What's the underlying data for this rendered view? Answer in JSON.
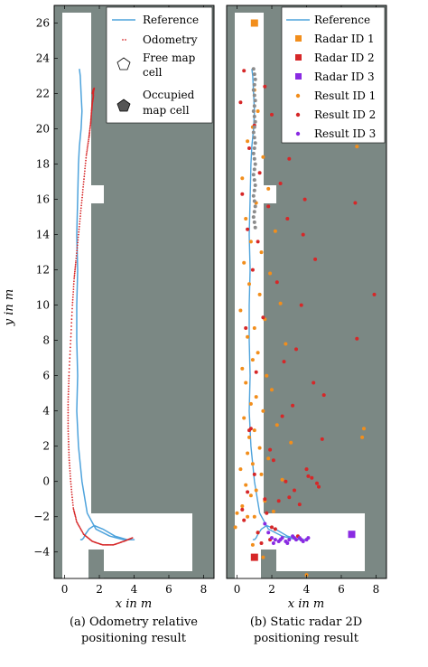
{
  "chart_data": [
    {
      "type": "scatter",
      "caption": [
        "(a) Odometry relative",
        "positioning result"
      ],
      "xlabel": "x in m",
      "ylabel": "y in m",
      "xlim": [
        -0.6,
        8.6
      ],
      "ylim": [
        -5.5,
        27
      ],
      "xticks": [
        0,
        2,
        4,
        6,
        8
      ],
      "yticks": [
        -4,
        -2,
        0,
        2,
        4,
        6,
        8,
        10,
        12,
        14,
        16,
        18,
        20,
        22,
        24,
        26
      ],
      "legend_position": "top-right",
      "legend": [
        {
          "label": "Reference",
          "kind": "line",
          "color": "#4ea3dc"
        },
        {
          "label": "Odometry",
          "kind": "dots",
          "color": "#d62728"
        },
        {
          "label": "Free map",
          "label2": "cell",
          "kind": "pentagon-open"
        },
        {
          "label": "Occupied",
          "label2": "map cell",
          "kind": "pentagon-filled"
        }
      ],
      "series": [
        {
          "name": "Reference",
          "kind": "line",
          "color": "#4ea3dc",
          "x": [
            0.9,
            1.0,
            1.1,
            1.2,
            1.4,
            1.7,
            2.2,
            2.9,
            3.6,
            4.0,
            3.4,
            2.6,
            1.8,
            1.3,
            1.0,
            0.8,
            0.7,
            0.75,
            0.7,
            0.7,
            0.75,
            0.7,
            0.75,
            0.8,
            0.85,
            0.95,
            1.0,
            0.95,
            0.9,
            0.85
          ],
          "y": [
            -3.3,
            -3.3,
            -3.2,
            -3.0,
            -2.7,
            -2.5,
            -2.7,
            -3.1,
            -3.3,
            -3.3,
            -3.3,
            -3.1,
            -2.7,
            -1.8,
            0.0,
            2.0,
            4.0,
            6.0,
            8.0,
            10.0,
            12.0,
            14.0,
            16.0,
            18.0,
            19.0,
            20.0,
            21.0,
            22.0,
            23.0,
            23.4
          ]
        },
        {
          "name": "Odometry",
          "kind": "dots",
          "color": "#d62728",
          "x": [
            3.9,
            3.4,
            2.8,
            2.2,
            1.6,
            1.1,
            0.7,
            0.5,
            0.35,
            0.25,
            0.2,
            0.2,
            0.25,
            0.35,
            0.45,
            0.55,
            0.65,
            0.8,
            0.95,
            1.1,
            1.25,
            1.4,
            1.5,
            1.55,
            1.6,
            1.65,
            1.65,
            1.7,
            1.65,
            1.6
          ],
          "y": [
            -3.2,
            -3.4,
            -3.6,
            -3.6,
            -3.4,
            -3.0,
            -2.3,
            -1.5,
            0.0,
            1.5,
            3.0,
            4.5,
            6.0,
            8.0,
            10.0,
            11.5,
            12.5,
            14.0,
            15.5,
            17.0,
            18.5,
            19.5,
            20.3,
            21.0,
            21.5,
            21.8,
            22.1,
            22.3,
            22.2,
            22.0
          ]
        }
      ]
    },
    {
      "type": "scatter",
      "caption": [
        "(b) Static radar 2D",
        "positioning result"
      ],
      "xlabel": "x in m",
      "xlim": [
        -0.6,
        8.6
      ],
      "ylim": [
        -5.5,
        27
      ],
      "xticks": [
        0,
        2,
        4,
        6,
        8
      ],
      "legend_position": "top-right",
      "legend": [
        {
          "label": "Reference",
          "kind": "line",
          "color": "#4ea3dc"
        },
        {
          "label": "Radar ID 1",
          "kind": "square",
          "color": "#f28e1c"
        },
        {
          "label": "Radar ID 2",
          "kind": "square",
          "color": "#d62728"
        },
        {
          "label": "Radar ID 3",
          "kind": "square",
          "color": "#8a2be2"
        },
        {
          "label": "Result ID 1",
          "kind": "dot",
          "color": "#f28e1c"
        },
        {
          "label": "Result ID 2",
          "kind": "dot",
          "color": "#d62728"
        },
        {
          "label": "Result ID 3",
          "kind": "dot",
          "color": "#8a2be2"
        }
      ],
      "radars": [
        {
          "name": "Radar ID 1",
          "x": 1.0,
          "y": 26.0,
          "color": "#f28e1c"
        },
        {
          "name": "Radar ID 2",
          "x": 1.0,
          "y": -4.3,
          "color": "#d62728"
        },
        {
          "name": "Radar ID 3",
          "x": 6.6,
          "y": -3.0,
          "color": "#8a2be2"
        }
      ],
      "results": [
        {
          "name": "Result ID 1",
          "color": "#f28e1c",
          "x": [
            1.0,
            1.2,
            0.9,
            0.6,
            1.5,
            0.3,
            1.8,
            1.1,
            0.5,
            2.2,
            0.8,
            1.4,
            0.4,
            1.9,
            0.7,
            1.3,
            2.5,
            0.2,
            1.6,
            1.0,
            0.6,
            2.8,
            1.2,
            0.9,
            0.3,
            1.7,
            0.5,
            2.0,
            1.1,
            0.8,
            1.5,
            0.4,
            2.3,
            1.0,
            0.7,
            3.1,
            1.3,
            0.6,
            1.8,
            0.9,
            0.2,
            1.4,
            2.6,
            0.5,
            1.1,
            0.8,
            1.6,
            0.3,
            2.1,
            1.0,
            7.2,
            7.3,
            6.9,
            4.0,
            0.0,
            -0.1,
            1.2,
            0.9,
            1.5,
            0.6
          ],
          "y": [
            22.2,
            21.0,
            20.1,
            19.3,
            18.4,
            17.2,
            16.6,
            15.8,
            14.9,
            14.2,
            13.6,
            13.0,
            12.4,
            11.8,
            11.2,
            10.6,
            10.1,
            9.7,
            9.2,
            8.7,
            8.2,
            7.8,
            7.3,
            6.9,
            6.4,
            6.0,
            5.6,
            5.2,
            4.8,
            4.4,
            4.0,
            3.6,
            3.2,
            2.9,
            2.5,
            2.2,
            1.9,
            1.6,
            1.3,
            1.0,
            0.7,
            0.4,
            0.1,
            -0.2,
            -0.5,
            -0.8,
            -1.1,
            -1.4,
            -1.7,
            -2.0,
            2.5,
            3.0,
            19.0,
            -5.3,
            -1.8,
            -2.6,
            -2.9,
            -3.6,
            -4.3,
            -2.0
          ]
        },
        {
          "name": "Result ID 2",
          "color": "#d62728",
          "x": [
            0.4,
            1.6,
            0.2,
            2.0,
            1.0,
            2.8,
            0.7,
            3.0,
            1.3,
            2.5,
            0.3,
            3.9,
            1.8,
            2.9,
            0.6,
            3.8,
            1.2,
            6.8,
            4.5,
            0.9,
            2.3,
            7.9,
            3.7,
            1.5,
            0.5,
            6.9,
            3.4,
            2.7,
            1.1,
            4.4,
            5.0,
            3.2,
            2.6,
            0.8,
            4.9,
            1.9,
            2.1,
            4.0,
            4.3,
            4.7,
            3.0,
            3.6,
            1.7,
            0.4,
            2.2,
            3.5,
            1.4,
            1.0,
            0.6,
            2.8,
            4.6,
            1.6,
            2.0,
            1.2,
            0.3,
            1.9,
            4.1,
            3.3,
            2.4,
            0.7
          ],
          "y": [
            23.3,
            22.4,
            21.5,
            20.8,
            20.2,
            19.6,
            18.9,
            18.3,
            17.5,
            16.9,
            16.3,
            16.0,
            15.6,
            14.9,
            14.3,
            14.0,
            13.6,
            15.8,
            12.6,
            12.0,
            11.3,
            10.6,
            10.0,
            9.3,
            8.7,
            8.1,
            7.5,
            6.8,
            6.2,
            5.6,
            4.9,
            4.3,
            3.7,
            3.0,
            2.4,
            1.8,
            1.2,
            0.7,
            0.2,
            -0.3,
            -0.9,
            -1.3,
            -1.8,
            -2.2,
            -2.7,
            -3.1,
            -3.5,
            0.4,
            -0.6,
            0.0,
            -0.1,
            -1.0,
            -2.6,
            -2.9,
            -1.6,
            -3.3,
            0.3,
            -0.5,
            -1.1,
            2.9
          ]
        },
        {
          "name": "Result ID 3",
          "color": "#8a2be2",
          "x": [
            1.6,
            1.8,
            2.0,
            2.2,
            2.4,
            2.6,
            2.8,
            3.0,
            3.2,
            3.4,
            3.6,
            3.8,
            4.0,
            4.1,
            2.1,
            2.5,
            2.9,
            3.3,
            3.7
          ],
          "y": [
            -2.4,
            -2.9,
            -3.2,
            -3.3,
            -3.4,
            -3.2,
            -3.4,
            -3.3,
            -3.1,
            -3.3,
            -3.2,
            -3.4,
            -3.3,
            -3.2,
            -3.5,
            -3.3,
            -3.5,
            -3.2,
            -3.3
          ]
        },
        {
          "name": "Result trace",
          "color": "#8c8c8c",
          "x": [
            0.95,
            1.0,
            1.05,
            1.0,
            0.95,
            1.0,
            1.05,
            1.0,
            0.95,
            1.0,
            1.05,
            1.0,
            0.95,
            1.0,
            1.05,
            1.0,
            0.95,
            1.0,
            1.05,
            1.0,
            0.95,
            1.0,
            1.05,
            1.0,
            0.95,
            1.0,
            1.05,
            1.0,
            0.95,
            1.0,
            1.05
          ],
          "y": [
            23.4,
            23.1,
            22.8,
            22.5,
            22.2,
            21.9,
            21.6,
            21.3,
            21.0,
            20.7,
            20.4,
            20.1,
            19.8,
            19.5,
            19.2,
            18.9,
            18.6,
            18.3,
            18.0,
            17.7,
            17.4,
            17.1,
            16.8,
            16.5,
            16.2,
            15.9,
            15.6,
            15.3,
            15.0,
            14.7,
            14.4
          ]
        }
      ],
      "series": [
        {
          "name": "Reference",
          "kind": "line",
          "color": "#4ea3dc",
          "x": [
            0.9,
            1.0,
            1.1,
            1.2,
            1.4,
            1.7,
            2.2,
            2.9,
            3.6,
            4.0,
            3.4,
            2.6,
            1.8,
            1.3,
            1.0,
            0.8,
            0.7,
            0.75,
            0.7,
            0.7,
            0.75,
            0.7,
            0.75,
            0.8,
            0.85,
            0.95,
            1.0,
            0.95,
            0.9,
            0.85
          ],
          "y": [
            -3.3,
            -3.3,
            -3.2,
            -3.0,
            -2.7,
            -2.5,
            -2.7,
            -3.1,
            -3.3,
            -3.3,
            -3.3,
            -3.1,
            -2.7,
            -1.8,
            0.0,
            2.0,
            4.0,
            6.0,
            8.0,
            10.0,
            12.0,
            14.0,
            16.0,
            18.0,
            19.0,
            20.0,
            21.0,
            22.0,
            23.0,
            23.4
          ]
        }
      ]
    }
  ]
}
